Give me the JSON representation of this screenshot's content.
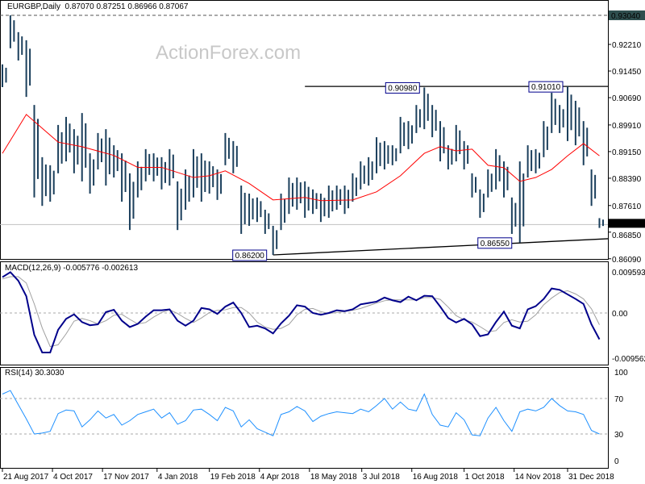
{
  "header": {
    "symbol": "EURGBP,Daily",
    "ohlc": "0.87070 0.87251 0.86966 0.87067"
  },
  "watermark": "ActionForex.com",
  "macd_header": "MACD(12,26,9) -0.005776 -0.002613",
  "rsi_header": "RSI(14) 30.3030",
  "colors": {
    "bars": "#1b3f5c",
    "ma": "#ff0000",
    "macd": "#00008b",
    "signal": "#a0a0a0",
    "rsi": "#1e90ff",
    "label_box": "#00008b"
  },
  "chart_data": [
    {
      "type": "ohlc",
      "title": "EURGBP,Daily",
      "price_axis_ticks": [
        "0.93040",
        "0.92210",
        "0.91450",
        "0.90690",
        "0.89910",
        "0.89150",
        "0.88390",
        "0.87610",
        "0.86850",
        "0.86090"
      ],
      "current_price": "0.87067",
      "ylim": [
        0.86,
        0.9345
      ],
      "annotations": [
        "0.86200",
        "0.90980",
        "0.91010",
        "0.86550"
      ],
      "date_ticks": [
        {
          "date": "2017-08-21",
          "label": "21 Aug 2017"
        },
        {
          "date": "2017-10-04",
          "label": "4 Oct 2017"
        },
        {
          "date": "2017-11-17",
          "label": "17 Nov 2017"
        },
        {
          "date": "2018-01-04",
          "label": "4 Jan 2018"
        },
        {
          "date": "2018-02-19",
          "label": "19 Feb 2018"
        },
        {
          "date": "2018-04-04",
          "label": "4 Apr 2018"
        },
        {
          "date": "2018-05-18",
          "label": "18 May 2018"
        },
        {
          "date": "2018-07-03",
          "label": "3 Jul 2018"
        },
        {
          "date": "2018-08-16",
          "label": "16 Aug 2018"
        },
        {
          "date": "2018-10-01",
          "label": "1 Oct 2018"
        },
        {
          "date": "2018-11-14",
          "label": "14 Nov 2018"
        },
        {
          "date": "2018-12-31",
          "label": "31 Dec 2018"
        }
      ],
      "bars_fields": [
        "date",
        "high",
        "low"
      ],
      "bars": [
        [
          "2017-08-21",
          0.9164,
          0.9099
        ],
        [
          "2017-08-28",
          0.9304,
          0.921
        ],
        [
          "2017-09-04",
          0.9256,
          0.9175
        ],
        [
          "2017-09-11",
          0.9233,
          0.9071
        ],
        [
          "2017-09-18",
          0.9048,
          0.8784
        ],
        [
          "2017-09-25",
          0.8899,
          0.876
        ],
        [
          "2017-10-02",
          0.8876,
          0.8772
        ],
        [
          "2017-10-09",
          0.8991,
          0.8853
        ],
        [
          "2017-10-16",
          0.9014,
          0.8887
        ],
        [
          "2017-10-23",
          0.8979,
          0.8853
        ],
        [
          "2017-10-30",
          0.9025,
          0.883
        ],
        [
          "2017-11-06",
          0.891,
          0.8795
        ],
        [
          "2017-11-13",
          0.8968,
          0.8864
        ],
        [
          "2017-11-20",
          0.8979,
          0.8818
        ],
        [
          "2017-11-27",
          0.8933,
          0.8841
        ],
        [
          "2017-12-04",
          0.891,
          0.8772
        ],
        [
          "2017-12-11",
          0.8853,
          0.8691
        ],
        [
          "2017-12-18",
          0.8887,
          0.8784
        ],
        [
          "2017-12-25",
          0.8922,
          0.883
        ],
        [
          "2018-01-01",
          0.891,
          0.883
        ],
        [
          "2018-01-08",
          0.8899,
          0.8807
        ],
        [
          "2018-01-15",
          0.8922,
          0.8818
        ],
        [
          "2018-01-22",
          0.883,
          0.8691
        ],
        [
          "2018-01-29",
          0.8864,
          0.8749
        ],
        [
          "2018-02-05",
          0.8922,
          0.8784
        ],
        [
          "2018-02-12",
          0.891,
          0.8772
        ],
        [
          "2018-02-19",
          0.8887,
          0.8795
        ],
        [
          "2018-02-26",
          0.8864,
          0.8777
        ],
        [
          "2018-03-05",
          0.8968,
          0.8876
        ],
        [
          "2018-03-12",
          0.8945,
          0.8853
        ],
        [
          "2018-03-19",
          0.8818,
          0.868
        ],
        [
          "2018-03-26",
          0.8795,
          0.8703
        ],
        [
          "2018-04-02",
          0.8784,
          0.8714
        ],
        [
          "2018-04-09",
          0.8749,
          0.868
        ],
        [
          "2018-04-16",
          0.8703,
          0.862
        ],
        [
          "2018-04-23",
          0.8795,
          0.8691
        ],
        [
          "2018-04-30",
          0.8841,
          0.8737
        ],
        [
          "2018-05-07",
          0.8841,
          0.8749
        ],
        [
          "2018-05-14",
          0.883,
          0.8726
        ],
        [
          "2018-05-21",
          0.8807,
          0.8737
        ],
        [
          "2018-05-28",
          0.8795,
          0.8714
        ],
        [
          "2018-06-04",
          0.8818,
          0.8726
        ],
        [
          "2018-06-11",
          0.8818,
          0.8749
        ],
        [
          "2018-06-18",
          0.8818,
          0.8737
        ],
        [
          "2018-06-25",
          0.8853,
          0.8772
        ],
        [
          "2018-07-02",
          0.8887,
          0.8807
        ],
        [
          "2018-07-09",
          0.8899,
          0.8818
        ],
        [
          "2018-07-16",
          0.8956,
          0.8853
        ],
        [
          "2018-07-23",
          0.8945,
          0.8864
        ],
        [
          "2018-07-30",
          0.8933,
          0.8876
        ],
        [
          "2018-08-06",
          0.9014,
          0.891
        ],
        [
          "2018-08-13",
          0.9002,
          0.8922
        ],
        [
          "2018-08-20",
          0.9048,
          0.8968
        ],
        [
          "2018-08-27",
          0.9098,
          0.8979
        ],
        [
          "2018-09-03",
          0.9048,
          0.8956
        ],
        [
          "2018-09-10",
          0.9002,
          0.8887
        ],
        [
          "2018-09-17",
          0.8933,
          0.8864
        ],
        [
          "2018-09-24",
          0.8991,
          0.8887
        ],
        [
          "2018-10-01",
          0.8945,
          0.8864
        ],
        [
          "2018-10-08",
          0.8853,
          0.8784
        ],
        [
          "2018-10-15",
          0.8807,
          0.8726
        ],
        [
          "2018-10-22",
          0.8864,
          0.8784
        ],
        [
          "2018-10-29",
          0.8922,
          0.8807
        ],
        [
          "2018-11-05",
          0.8887,
          0.8784
        ],
        [
          "2018-11-12",
          0.8784,
          0.868
        ],
        [
          "2018-11-19",
          0.8887,
          0.8655
        ],
        [
          "2018-11-26",
          0.8933,
          0.8841
        ],
        [
          "2018-12-03",
          0.8922,
          0.8853
        ],
        [
          "2018-12-10",
          0.9002,
          0.8899
        ],
        [
          "2018-12-17",
          0.9083,
          0.8968
        ],
        [
          "2018-12-24",
          0.9048,
          0.8968
        ],
        [
          "2018-12-31",
          0.9101,
          0.8945
        ],
        [
          "2019-01-07",
          0.906,
          0.8933
        ],
        [
          "2019-01-14",
          0.9002,
          0.8876
        ],
        [
          "2019-01-21",
          0.8864,
          0.876
        ],
        [
          "2019-01-28",
          0.8725,
          0.8697
        ]
      ],
      "moving_average": [
        [
          "2017-08-21",
          0.891
        ],
        [
          "2017-09-11",
          0.9021
        ],
        [
          "2017-10-09",
          0.8942
        ],
        [
          "2017-10-30",
          0.8929
        ],
        [
          "2017-11-27",
          0.8904
        ],
        [
          "2017-12-18",
          0.887
        ],
        [
          "2018-01-08",
          0.887
        ],
        [
          "2018-02-05",
          0.8841
        ],
        [
          "2018-02-19",
          0.8846
        ],
        [
          "2018-03-05",
          0.886
        ],
        [
          "2018-03-26",
          0.8824
        ],
        [
          "2018-04-16",
          0.8777
        ],
        [
          "2018-05-14",
          0.8784
        ],
        [
          "2018-05-28",
          0.8775
        ],
        [
          "2018-06-25",
          0.8777
        ],
        [
          "2018-07-16",
          0.88
        ],
        [
          "2018-08-06",
          0.8846
        ],
        [
          "2018-08-27",
          0.891
        ],
        [
          "2018-09-10",
          0.8929
        ],
        [
          "2018-09-24",
          0.8917
        ],
        [
          "2018-10-08",
          0.8922
        ],
        [
          "2018-10-22",
          0.8876
        ],
        [
          "2018-11-05",
          0.8869
        ],
        [
          "2018-11-19",
          0.883
        ],
        [
          "2018-12-03",
          0.8841
        ],
        [
          "2018-12-17",
          0.8864
        ],
        [
          "2018-12-31",
          0.8903
        ],
        [
          "2019-01-14",
          0.8938
        ],
        [
          "2019-01-28",
          0.8903
        ]
      ],
      "lines": [
        {
          "kind": "horizontal-dashed",
          "value": 0.9304
        },
        {
          "kind": "horizontal",
          "value": 0.9101,
          "from": "2018-05-14"
        },
        {
          "kind": "trendline",
          "from": [
            "2018-04-16",
            0.862
          ],
          "to": [
            "2019-01-28",
            0.8665
          ]
        }
      ]
    },
    {
      "type": "line",
      "title": "MACD(12,26,9) -0.005776 -0.002613",
      "axis_ticks": [
        "0.009593",
        "0.00",
        "-0.009562"
      ],
      "ylim": [
        -0.01,
        0.01
      ],
      "macd": [
        0.0079,
        0.009,
        0.0071,
        0.0037,
        -0.0048,
        -0.0087,
        -0.0087,
        -0.0037,
        -0.0013,
        -0.0003,
        -0.002,
        -0.0027,
        -0.0025,
        0.0002,
        0.0007,
        -0.0017,
        -0.0031,
        -0.0024,
        -0.0008,
        0.0006,
        0.0006,
        0.0008,
        -0.0017,
        -0.0028,
        -0.0017,
        0.0011,
        0.0008,
        -0.0002,
        0.0014,
        0.0023,
        0.0,
        -0.0031,
        -0.0028,
        -0.0034,
        -0.0045,
        -0.0023,
        -0.0006,
        0.0017,
        0.0014,
        0.0,
        -0.0004,
        0.0,
        0.0006,
        0.0004,
        0.0008,
        0.0019,
        0.0022,
        0.0025,
        0.0034,
        0.0028,
        0.0024,
        0.0036,
        0.0028,
        0.0038,
        0.0037,
        0.0014,
        -0.0011,
        -0.0021,
        -0.0013,
        -0.0025,
        -0.0051,
        -0.0047,
        -0.002,
        0.0003,
        -0.0028,
        -0.0034,
        0.0008,
        0.0015,
        0.0031,
        0.0054,
        0.0051,
        0.0041,
        0.0031,
        0.002,
        -0.0025,
        -0.0058
      ],
      "signal": [
        0.0075,
        0.008,
        0.008,
        0.0066,
        0.002,
        -0.0033,
        -0.0074,
        -0.007,
        -0.0046,
        -0.0018,
        -0.0012,
        -0.0017,
        -0.0024,
        -0.0017,
        -0.0005,
        -0.0003,
        -0.0014,
        -0.0024,
        -0.0021,
        -0.0009,
        0.0001,
        0.0007,
        -0.0001,
        -0.0012,
        -0.0021,
        -0.0011,
        0.0001,
        0.0006,
        0.0007,
        0.0012,
        0.0012,
        0.0,
        -0.002,
        -0.0031,
        -0.0036,
        -0.0034,
        -0.0025,
        -0.0004,
        0.0008,
        0.001,
        0.0003,
        -0.0001,
        0.0001,
        0.0003,
        0.0006,
        0.001,
        0.0016,
        0.0022,
        0.0027,
        0.0029,
        0.0029,
        0.0029,
        0.0029,
        0.0034,
        0.0034,
        0.003,
        0.0013,
        -0.0006,
        -0.0015,
        -0.002,
        -0.003,
        -0.0041,
        -0.0039,
        -0.0021,
        -0.0015,
        -0.002,
        -0.0018,
        -0.0004,
        0.0018,
        0.0033,
        0.0045,
        0.0049,
        0.0042,
        0.0031,
        0.0009,
        -0.0026
      ]
    },
    {
      "type": "line",
      "title": "RSI(14) 30.3030",
      "axis_ticks": [
        "100",
        "70",
        "30",
        "0"
      ],
      "ylim": [
        0,
        100
      ],
      "levels": [
        70,
        30
      ],
      "rsi": [
        75,
        79,
        63,
        47,
        30,
        31,
        33,
        53,
        57,
        56,
        38,
        46,
        56,
        48,
        52,
        40,
        45,
        52,
        55,
        58,
        48,
        54,
        41,
        45,
        57,
        58,
        52,
        45,
        60,
        56,
        38,
        46,
        36,
        32,
        28,
        52,
        55,
        61,
        56,
        44,
        50,
        53,
        55,
        54,
        53,
        58,
        55,
        62,
        70,
        58,
        66,
        58,
        56,
        75,
        52,
        40,
        38,
        54,
        46,
        29,
        28,
        48,
        60,
        45,
        33,
        55,
        58,
        56,
        60,
        70,
        62,
        56,
        55,
        52,
        34,
        30
      ]
    }
  ]
}
